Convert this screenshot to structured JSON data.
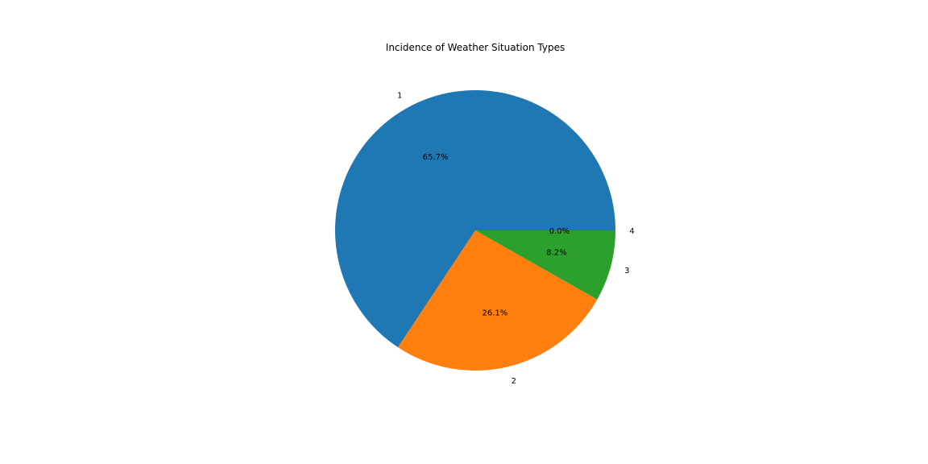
{
  "chart_data": {
    "type": "pie",
    "title": "Incidence of Weather Situation Types",
    "categories": [
      "1",
      "2",
      "3",
      "4"
    ],
    "values": [
      65.7,
      26.1,
      8.2,
      0.0
    ],
    "percent_labels": [
      "65.7%",
      "26.1%",
      "8.2%",
      "0.0%"
    ],
    "colors": [
      "#1f77b4",
      "#ff7f0e",
      "#2ca02c",
      "#d62728"
    ],
    "start_angle": "0 degrees (3 o'clock)",
    "direction": "counterclockwise",
    "legend": "none"
  }
}
